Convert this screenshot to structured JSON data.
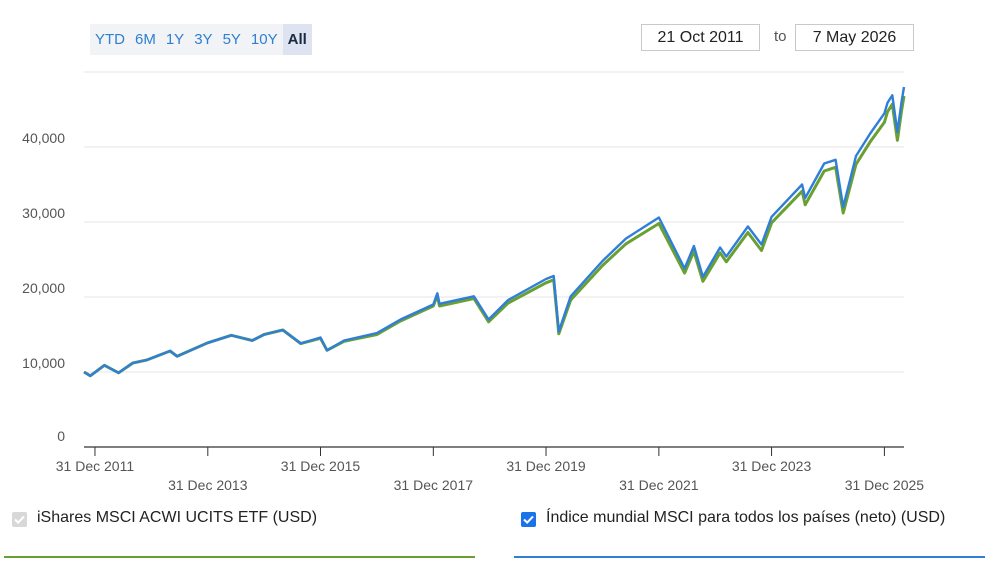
{
  "range_buttons": [
    "YTD",
    "6M",
    "1Y",
    "3Y",
    "5Y",
    "10Y",
    "All"
  ],
  "active_range": "All",
  "date_range": {
    "from": "21 Oct 2011",
    "separator": "to",
    "to": "7 May 2026"
  },
  "legend": [
    {
      "label": "iShares MSCI ACWI UCITS ETF (USD)",
      "checked": true,
      "checkbox_disabled": true,
      "color": "#6aa032"
    },
    {
      "label": "Índice mundial MSCI para todos los países (neto) (USD)",
      "checked": true,
      "checkbox_disabled": false,
      "color": "#2f7ed8"
    }
  ],
  "chart_data": {
    "type": "line",
    "title": "",
    "xlabel": "",
    "ylabel": "",
    "ylim": [
      0,
      50000
    ],
    "xlim": [
      "2011-10-21",
      "2026-05-07"
    ],
    "y_ticks": [
      {
        "value": 0,
        "label": "0"
      },
      {
        "value": 10000,
        "label": "10,000"
      },
      {
        "value": 20000,
        "label": "20,000"
      },
      {
        "value": 30000,
        "label": "30,000"
      },
      {
        "value": 40000,
        "label": "40,000"
      }
    ],
    "x_ticks": [
      {
        "value": "2011-12-31",
        "label": "31 Dec 2011"
      },
      {
        "value": "2013-12-31",
        "label": "31 Dec 2013"
      },
      {
        "value": "2015-12-31",
        "label": "31 Dec 2015"
      },
      {
        "value": "2017-12-31",
        "label": "31 Dec 2017"
      },
      {
        "value": "2019-12-31",
        "label": "31 Dec 2019"
      },
      {
        "value": "2021-12-31",
        "label": "31 Dec 2021"
      },
      {
        "value": "2023-12-31",
        "label": "31 Dec 2023"
      },
      {
        "value": "2025-12-31",
        "label": "31 Dec 2025"
      }
    ],
    "grid": true,
    "series": [
      {
        "name": "iShares MSCI ACWI UCITS ETF (USD)",
        "color": "#6aa032",
        "points": [
          [
            "2011-10-21",
            10000
          ],
          [
            "2011-12-01",
            9500
          ],
          [
            "2012-03-01",
            10900
          ],
          [
            "2012-06-01",
            9900
          ],
          [
            "2012-09-01",
            11200
          ],
          [
            "2012-12-01",
            11600
          ],
          [
            "2013-05-01",
            12800
          ],
          [
            "2013-06-15",
            12100
          ],
          [
            "2013-12-31",
            13900
          ],
          [
            "2014-06-01",
            14900
          ],
          [
            "2014-10-15",
            14200
          ],
          [
            "2014-12-31",
            15000
          ],
          [
            "2015-05-01",
            15600
          ],
          [
            "2015-08-25",
            13800
          ],
          [
            "2015-12-31",
            14500
          ],
          [
            "2016-02-11",
            12900
          ],
          [
            "2016-06-01",
            14100
          ],
          [
            "2016-12-31",
            15000
          ],
          [
            "2017-06-01",
            16800
          ],
          [
            "2017-12-31",
            18800
          ],
          [
            "2018-01-26",
            20200
          ],
          [
            "2018-02-09",
            18800
          ],
          [
            "2018-09-20",
            19800
          ],
          [
            "2018-12-24",
            16700
          ],
          [
            "2019-04-30",
            19200
          ],
          [
            "2019-12-31",
            21900
          ],
          [
            "2020-02-19",
            22300
          ],
          [
            "2020-03-23",
            15100
          ],
          [
            "2020-06-08",
            19600
          ],
          [
            "2020-12-31",
            24200
          ],
          [
            "2021-06-01",
            27100
          ],
          [
            "2021-12-31",
            29800
          ],
          [
            "2022-06-16",
            23200
          ],
          [
            "2022-08-15",
            26100
          ],
          [
            "2022-10-12",
            22100
          ],
          [
            "2023-02-01",
            25900
          ],
          [
            "2023-03-13",
            24700
          ],
          [
            "2023-07-31",
            28600
          ],
          [
            "2023-10-27",
            26200
          ],
          [
            "2023-12-31",
            29900
          ],
          [
            "2024-07-16",
            34100
          ],
          [
            "2024-08-05",
            32300
          ],
          [
            "2024-12-06",
            36800
          ],
          [
            "2025-02-18",
            37300
          ],
          [
            "2025-04-08",
            31200
          ],
          [
            "2025-06-30",
            37700
          ],
          [
            "2025-09-30",
            40700
          ],
          [
            "2025-12-31",
            43300
          ],
          [
            "2026-01-20",
            44700
          ],
          [
            "2026-02-20",
            45700
          ],
          [
            "2026-03-25",
            40900
          ],
          [
            "2026-04-20",
            44700
          ],
          [
            "2026-05-07",
            46800
          ]
        ]
      },
      {
        "name": "Índice mundial MSCI para todos los países (neto) (USD)",
        "color": "#2f7ed8",
        "points": [
          [
            "2011-10-21",
            10000
          ],
          [
            "2011-12-01",
            9500
          ],
          [
            "2012-03-01",
            10900
          ],
          [
            "2012-06-01",
            9900
          ],
          [
            "2012-09-01",
            11200
          ],
          [
            "2012-12-01",
            11600
          ],
          [
            "2013-05-01",
            12800
          ],
          [
            "2013-06-15",
            12100
          ],
          [
            "2013-12-31",
            13900
          ],
          [
            "2014-06-01",
            14900
          ],
          [
            "2014-10-15",
            14200
          ],
          [
            "2014-12-31",
            15000
          ],
          [
            "2015-05-01",
            15600
          ],
          [
            "2015-08-25",
            13800
          ],
          [
            "2015-12-31",
            14600
          ],
          [
            "2016-02-11",
            12900
          ],
          [
            "2016-06-01",
            14200
          ],
          [
            "2016-12-31",
            15200
          ],
          [
            "2017-06-01",
            17000
          ],
          [
            "2017-12-31",
            19000
          ],
          [
            "2018-01-26",
            20500
          ],
          [
            "2018-02-09",
            19100
          ],
          [
            "2018-09-20",
            20100
          ],
          [
            "2018-12-24",
            17000
          ],
          [
            "2019-04-30",
            19600
          ],
          [
            "2019-12-31",
            22400
          ],
          [
            "2020-02-19",
            22800
          ],
          [
            "2020-03-23",
            15400
          ],
          [
            "2020-06-08",
            20100
          ],
          [
            "2020-12-31",
            24800
          ],
          [
            "2021-06-01",
            27800
          ],
          [
            "2021-12-31",
            30600
          ],
          [
            "2022-06-16",
            23800
          ],
          [
            "2022-08-15",
            26800
          ],
          [
            "2022-10-12",
            22700
          ],
          [
            "2023-02-01",
            26600
          ],
          [
            "2023-03-13",
            25400
          ],
          [
            "2023-07-31",
            29400
          ],
          [
            "2023-10-27",
            27000
          ],
          [
            "2023-12-31",
            30700
          ],
          [
            "2024-07-16",
            35000
          ],
          [
            "2024-08-05",
            33200
          ],
          [
            "2024-12-06",
            37800
          ],
          [
            "2025-02-18",
            38300
          ],
          [
            "2025-04-08",
            32000
          ],
          [
            "2025-06-30",
            38800
          ],
          [
            "2025-09-30",
            41800
          ],
          [
            "2025-12-31",
            44500
          ],
          [
            "2026-01-20",
            45900
          ],
          [
            "2026-02-20",
            46900
          ],
          [
            "2026-03-25",
            42000
          ],
          [
            "2026-04-20",
            45900
          ],
          [
            "2026-05-07",
            48000
          ]
        ]
      }
    ]
  }
}
